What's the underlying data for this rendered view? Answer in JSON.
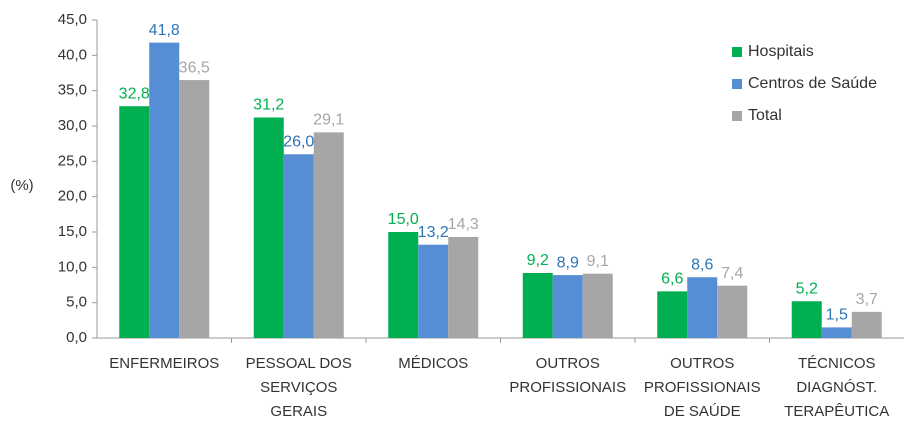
{
  "chart_data": {
    "type": "bar",
    "y_label": "(%)",
    "categories": [
      "ENFERMEIROS",
      "PESSOAL DOS\nSERVIÇOS\nGERAIS",
      "MÉDICOS",
      "OUTROS\nPROFISSIONAIS",
      "OUTROS\nPROFISSIONAIS\nDE SAÚDE",
      "TÉCNICOS\nDIAGNÓST.\nTERAPÊUTICA"
    ],
    "series": [
      {
        "name": "Hospitais",
        "color": "#00b050",
        "label_color": "#00b050",
        "values": [
          32.8,
          31.2,
          15.0,
          9.2,
          6.6,
          5.2
        ],
        "value_labels": [
          "32,8",
          "31,2",
          "15,0",
          "9,2",
          "6,6",
          "5,2"
        ]
      },
      {
        "name": "Centros de Saúde",
        "color": "#558ed5",
        "label_color": "#2e75b6",
        "values": [
          41.8,
          26.0,
          13.2,
          8.9,
          8.6,
          1.5
        ],
        "value_labels": [
          "41,8",
          "26,0",
          "13,2",
          "8,9",
          "8,6",
          "1,5"
        ]
      },
      {
        "name": "Total",
        "color": "#a6a6a6",
        "label_color": "#a6a6a6",
        "values": [
          36.5,
          29.1,
          14.3,
          9.1,
          7.4,
          3.7
        ],
        "value_labels": [
          "36,5",
          "29,1",
          "14,3",
          "9,1",
          "7,4",
          "3,7"
        ]
      }
    ],
    "ylim": [
      0,
      45
    ],
    "yticks": [
      {
        "value": 0,
        "label": "0,0"
      },
      {
        "value": 5,
        "label": "5,0"
      },
      {
        "value": 10,
        "label": "10,0"
      },
      {
        "value": 15,
        "label": "15,0"
      },
      {
        "value": 20,
        "label": "20,0"
      },
      {
        "value": 25,
        "label": "25,0"
      },
      {
        "value": 30,
        "label": "30,0"
      },
      {
        "value": 35,
        "label": "35,0"
      },
      {
        "value": 40,
        "label": "40,0"
      },
      {
        "value": 45,
        "label": "45,0"
      }
    ],
    "legend": "top-right"
  }
}
